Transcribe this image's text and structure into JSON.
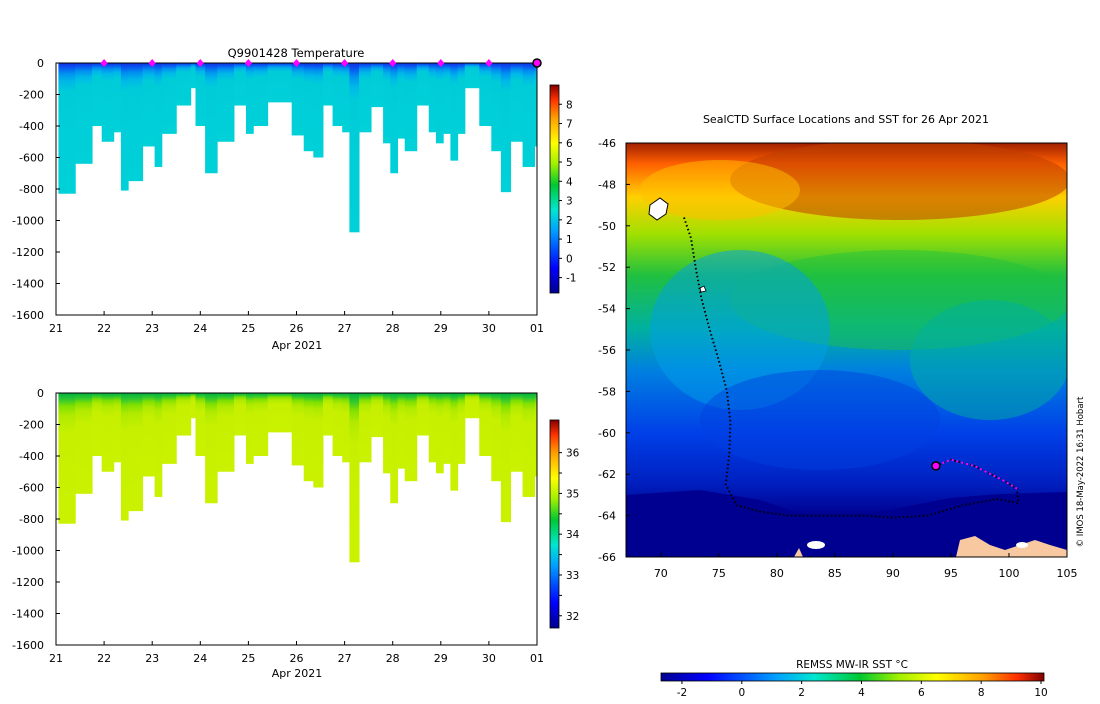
{
  "chart_data": [
    {
      "type": "heatmap",
      "name": "temperature-profile",
      "title": "Q9901428  Temperature",
      "xlabel": "Apr 2021",
      "x_ticks": [
        "21",
        "22",
        "23",
        "24",
        "25",
        "26",
        "27",
        "28",
        "29",
        "30",
        "01"
      ],
      "xlim": [
        21,
        31
      ],
      "ylim": [
        -1600,
        0
      ],
      "y_ticks": [
        0,
        -200,
        -400,
        -600,
        -800,
        -1000,
        -1200,
        -1400,
        -1600
      ],
      "colorbar": {
        "min": -1.8,
        "max": 9,
        "ticks": [
          8,
          7,
          6,
          5,
          4,
          3,
          2,
          1,
          0,
          -1
        ]
      },
      "surface_markers_days": [
        22,
        23,
        24,
        25,
        26,
        27,
        28,
        29,
        30
      ],
      "current_position_day": 31,
      "profiles": [
        {
          "day": 21.05,
          "depth": 830
        },
        {
          "day": 21.4,
          "depth": 640
        },
        {
          "day": 21.75,
          "depth": 400
        },
        {
          "day": 21.95,
          "depth": 500
        },
        {
          "day": 22.2,
          "depth": 440
        },
        {
          "day": 22.35,
          "depth": 810
        },
        {
          "day": 22.5,
          "depth": 750
        },
        {
          "day": 22.8,
          "depth": 530
        },
        {
          "day": 23.05,
          "depth": 660
        },
        {
          "day": 23.2,
          "depth": 450
        },
        {
          "day": 23.5,
          "depth": 270
        },
        {
          "day": 23.8,
          "depth": 160
        },
        {
          "day": 23.9,
          "depth": 400
        },
        {
          "day": 24.1,
          "depth": 700
        },
        {
          "day": 24.35,
          "depth": 500
        },
        {
          "day": 24.7,
          "depth": 270
        },
        {
          "day": 24.95,
          "depth": 450
        },
        {
          "day": 25.1,
          "depth": 400
        },
        {
          "day": 25.4,
          "depth": 250
        },
        {
          "day": 25.9,
          "depth": 460
        },
        {
          "day": 26.15,
          "depth": 560
        },
        {
          "day": 26.35,
          "depth": 600
        },
        {
          "day": 26.55,
          "depth": 270
        },
        {
          "day": 26.75,
          "depth": 400
        },
        {
          "day": 26.95,
          "depth": 440
        },
        {
          "day": 27.1,
          "depth": 1075
        },
        {
          "day": 27.3,
          "depth": 440
        },
        {
          "day": 27.55,
          "depth": 280
        },
        {
          "day": 27.8,
          "depth": 510
        },
        {
          "day": 27.95,
          "depth": 700
        },
        {
          "day": 28.1,
          "depth": 480
        },
        {
          "day": 28.25,
          "depth": 560
        },
        {
          "day": 28.5,
          "depth": 270
        },
        {
          "day": 28.75,
          "depth": 440
        },
        {
          "day": 28.9,
          "depth": 510
        },
        {
          "day": 29.05,
          "depth": 450
        },
        {
          "day": 29.2,
          "depth": 620
        },
        {
          "day": 29.35,
          "depth": 450
        },
        {
          "day": 29.5,
          "depth": 160
        },
        {
          "day": 29.8,
          "depth": 400
        },
        {
          "day": 30.05,
          "depth": 560
        },
        {
          "day": 30.25,
          "depth": 820
        },
        {
          "day": 30.45,
          "depth": 500
        },
        {
          "day": 30.7,
          "depth": 660
        },
        {
          "day": 30.95,
          "depth": 530
        }
      ]
    },
    {
      "type": "heatmap",
      "name": "salinity-profile",
      "title": "",
      "xlabel": "Apr 2021",
      "x_ticks": [
        "21",
        "22",
        "23",
        "24",
        "25",
        "26",
        "27",
        "28",
        "29",
        "30",
        "01"
      ],
      "xlim": [
        21,
        31
      ],
      "ylim": [
        -1600,
        0
      ],
      "y_ticks": [
        0,
        -200,
        -400,
        -600,
        -800,
        -1000,
        -1200,
        -1400,
        -1600
      ],
      "colorbar": {
        "min": 31.7,
        "max": 36.8,
        "ticks": [
          36,
          35.5,
          35,
          34.5,
          34,
          33.5,
          33,
          32.5,
          32
        ]
      },
      "colorbar_labels": [
        "36",
        "35",
        "34",
        "33",
        "32"
      ]
    },
    {
      "type": "heatmap",
      "name": "sst-map",
      "title": "SealCTD Surface Locations and SST for 26 Apr 2021",
      "x_ticks": [
        "70",
        "75",
        "80",
        "85",
        "90",
        "95",
        "100",
        "105"
      ],
      "xlim": [
        67,
        105
      ],
      "y_ticks": [
        "-46",
        "-48",
        "-50",
        "-52",
        "-54",
        "-56",
        "-58",
        "-60",
        "-62",
        "-64",
        "-66"
      ],
      "ylim": [
        -66,
        -46
      ],
      "colorbar_label": "REMSS MW-IR SST °C",
      "colorbar": {
        "min": -2.7,
        "max": 10.1,
        "ticks": [
          "-2",
          "0",
          "2",
          "4",
          "6",
          "8",
          "10"
        ]
      },
      "track": [
        [
          72,
          -49.6
        ],
        [
          72.6,
          -50.6
        ],
        [
          73.0,
          -52.0
        ],
        [
          73.5,
          -53.5
        ],
        [
          74.2,
          -55
        ],
        [
          75.0,
          -56.5
        ],
        [
          75.7,
          -58.0
        ],
        [
          76.0,
          -59.5
        ],
        [
          75.9,
          -61.0
        ],
        [
          75.6,
          -62.5
        ],
        [
          76.5,
          -63.5
        ],
        [
          78.5,
          -63.8
        ],
        [
          81.0,
          -64.0
        ],
        [
          84.0,
          -64.0
        ],
        [
          87.5,
          -64.0
        ],
        [
          90.0,
          -64.1
        ],
        [
          93.0,
          -64.0
        ],
        [
          96.0,
          -63.5
        ],
        [
          99.0,
          -63.2
        ],
        [
          100.8,
          -63.4
        ],
        [
          100.7,
          -62.7
        ],
        [
          99.5,
          -62.3
        ],
        [
          97.0,
          -61.6
        ],
        [
          95.0,
          -61.3
        ],
        [
          93.7,
          -61.6
        ]
      ],
      "track_end": [
        93.7,
        -61.6
      ]
    }
  ],
  "footer_credit": "© IMOS 18-May-2022 16:31 Hobart"
}
